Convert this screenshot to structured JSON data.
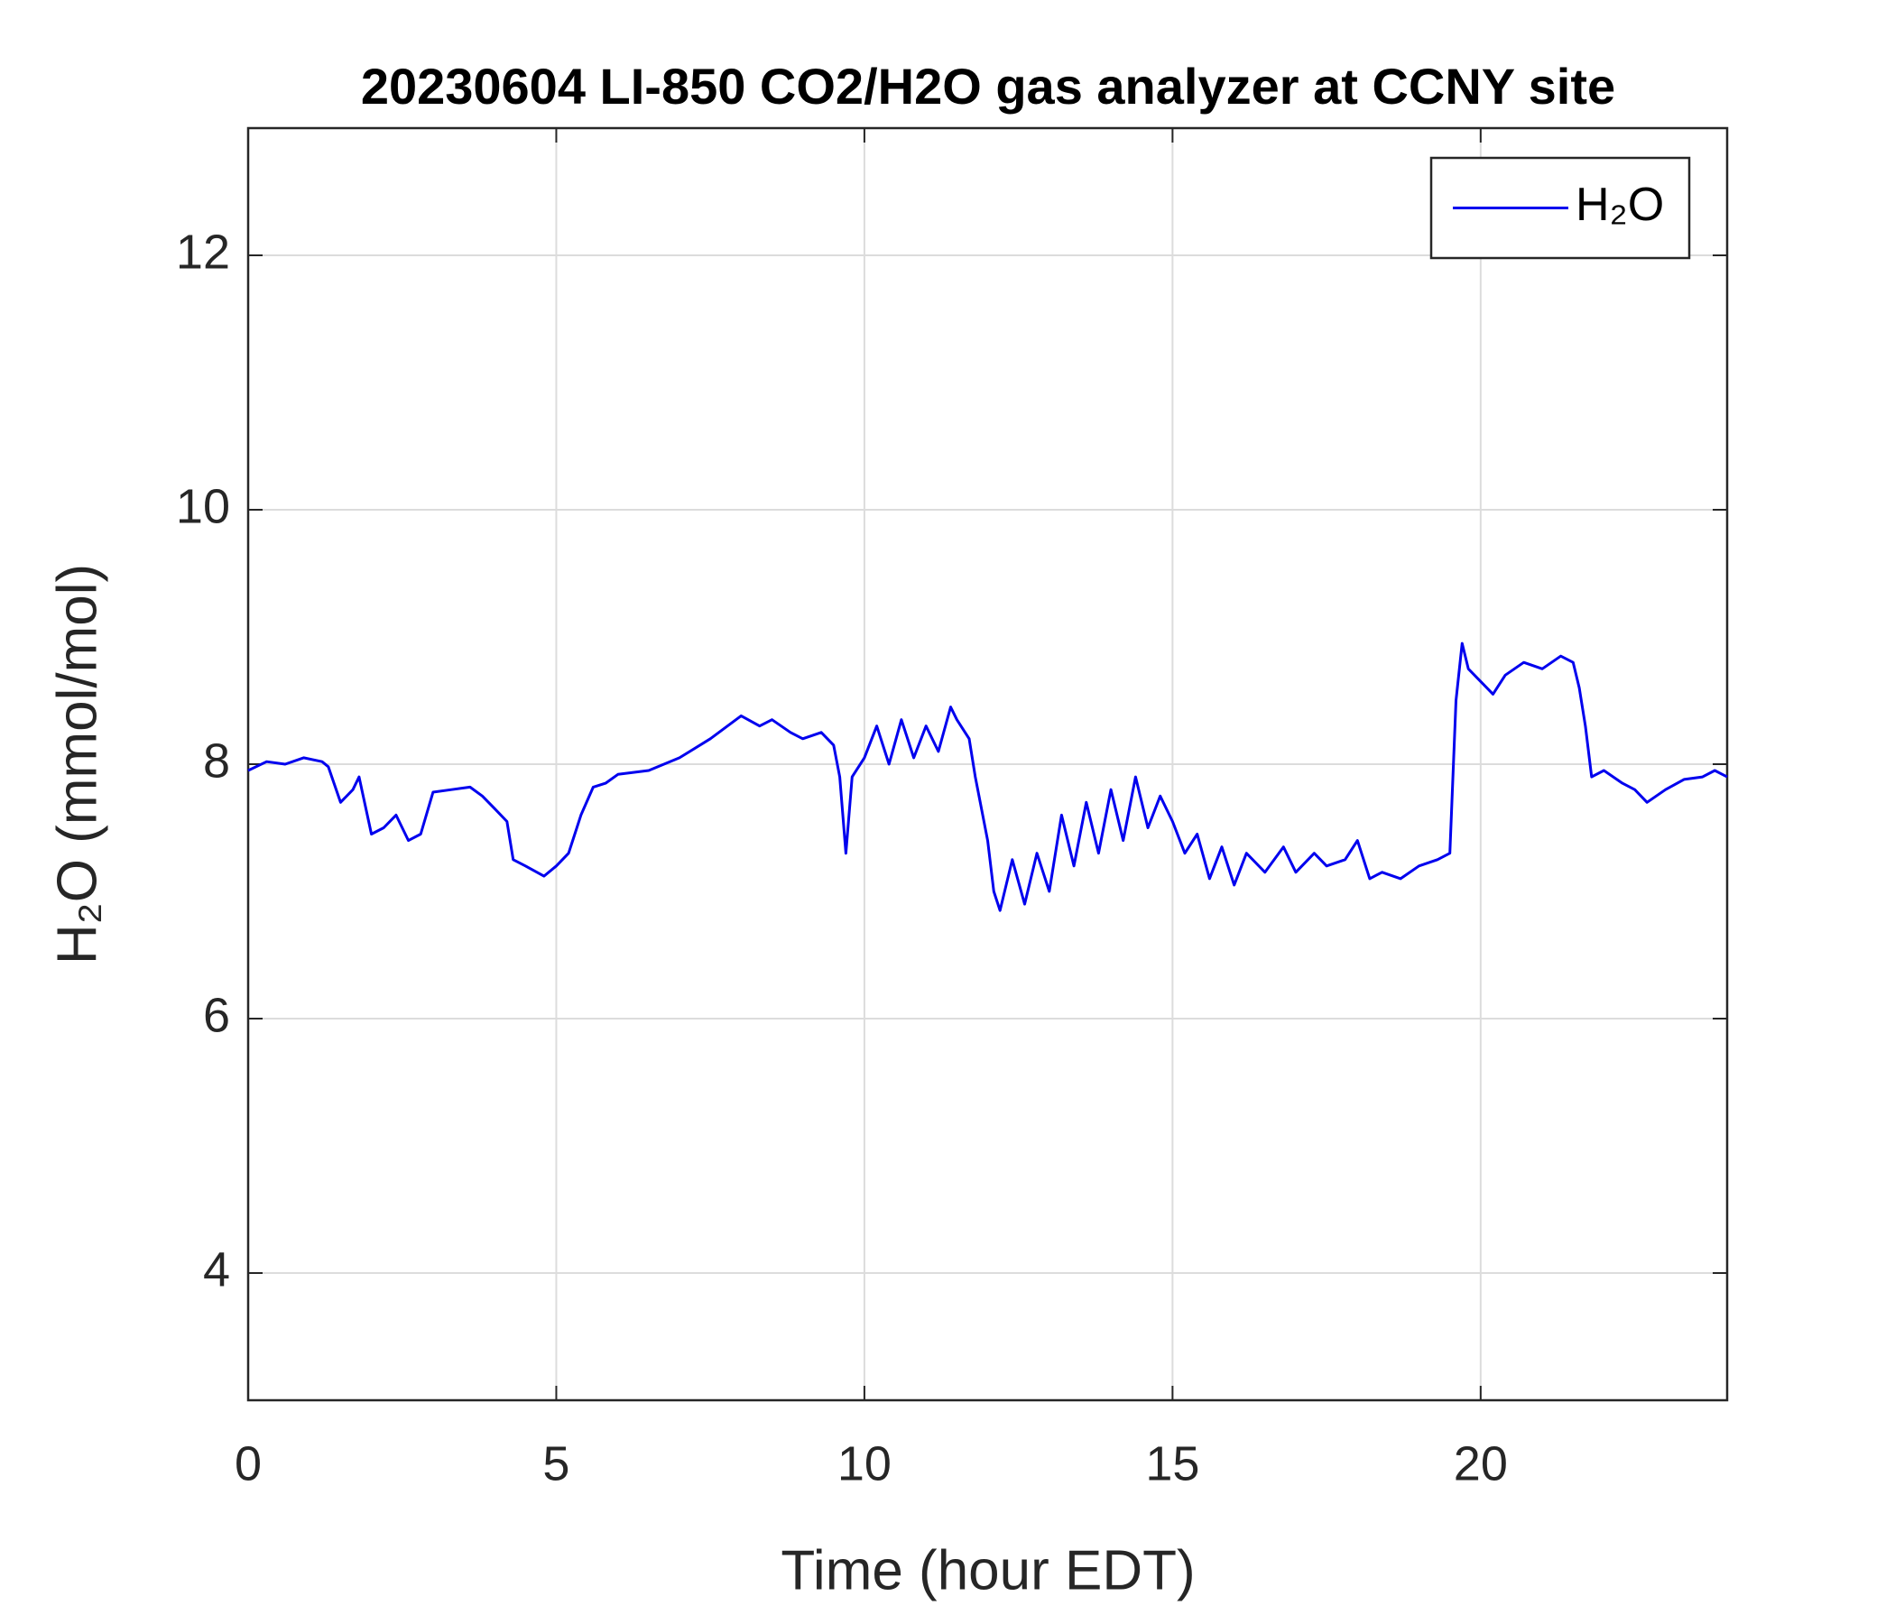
{
  "chart_data": {
    "type": "line",
    "title": "20230604 LI-850 CO2/H2O gas analyzer at CCNY site",
    "xlabel": "Time (hour EDT)",
    "ylabel": "H₂O (mmol/mol)",
    "xlim": [
      0,
      24
    ],
    "ylim": [
      3,
      13
    ],
    "xticks": [
      0,
      5,
      10,
      15,
      20
    ],
    "yticks": [
      4,
      6,
      8,
      10,
      12
    ],
    "grid": true,
    "legend": "upper right",
    "x": [
      0,
      0.3,
      0.6,
      0.9,
      1.2,
      1.3,
      1.5,
      1.7,
      1.8,
      2.0,
      2.2,
      2.4,
      2.6,
      2.8,
      3.0,
      3.3,
      3.6,
      3.8,
      4.0,
      4.2,
      4.3,
      4.5,
      4.8,
      5.0,
      5.2,
      5.4,
      5.6,
      5.8,
      6.0,
      6.5,
      7.0,
      7.5,
      8.0,
      8.3,
      8.5,
      8.8,
      9.0,
      9.3,
      9.5,
      9.6,
      9.7,
      9.8,
      10.0,
      10.2,
      10.4,
      10.6,
      10.8,
      11.0,
      11.2,
      11.4,
      11.5,
      11.7,
      11.8,
      12.0,
      12.1,
      12.2,
      12.4,
      12.6,
      12.8,
      13.0,
      13.2,
      13.4,
      13.6,
      13.8,
      14.0,
      14.2,
      14.4,
      14.6,
      14.8,
      15.0,
      15.2,
      15.4,
      15.6,
      15.8,
      16.0,
      16.2,
      16.5,
      16.8,
      17.0,
      17.3,
      17.5,
      17.8,
      18.0,
      18.2,
      18.4,
      18.7,
      19.0,
      19.3,
      19.5,
      19.6,
      19.7,
      19.8,
      20.0,
      20.2,
      20.4,
      20.7,
      21.0,
      21.3,
      21.5,
      21.6,
      21.7,
      21.8,
      22.0,
      22.3,
      22.5,
      22.7,
      23.0,
      23.3,
      23.6,
      23.8,
      24.0
    ],
    "series": [
      {
        "name": "H₂O",
        "color": "#0000ee",
        "values": [
          7.95,
          8.02,
          8.0,
          8.05,
          8.02,
          7.98,
          7.7,
          7.8,
          7.9,
          7.45,
          7.5,
          7.6,
          7.4,
          7.45,
          7.78,
          7.8,
          7.82,
          7.75,
          7.65,
          7.55,
          7.25,
          7.2,
          7.12,
          7.2,
          7.3,
          7.6,
          7.82,
          7.85,
          7.92,
          7.95,
          8.05,
          8.2,
          8.38,
          8.3,
          8.35,
          8.25,
          8.2,
          8.25,
          8.15,
          7.9,
          7.3,
          7.9,
          8.05,
          8.3,
          8.0,
          8.35,
          8.05,
          8.3,
          8.1,
          8.45,
          8.35,
          8.2,
          7.9,
          7.4,
          7.0,
          6.85,
          7.25,
          6.9,
          7.3,
          7.0,
          7.6,
          7.2,
          7.7,
          7.3,
          7.8,
          7.4,
          7.9,
          7.5,
          7.75,
          7.55,
          7.3,
          7.45,
          7.1,
          7.35,
          7.05,
          7.3,
          7.15,
          7.35,
          7.15,
          7.3,
          7.2,
          7.25,
          7.4,
          7.1,
          7.15,
          7.1,
          7.2,
          7.25,
          7.3,
          8.5,
          8.95,
          8.75,
          8.65,
          8.55,
          8.7,
          8.8,
          8.75,
          8.85,
          8.8,
          8.6,
          8.3,
          7.9,
          7.95,
          7.85,
          7.8,
          7.7,
          7.8,
          7.88,
          7.9,
          7.95,
          7.9
        ]
      }
    ]
  }
}
